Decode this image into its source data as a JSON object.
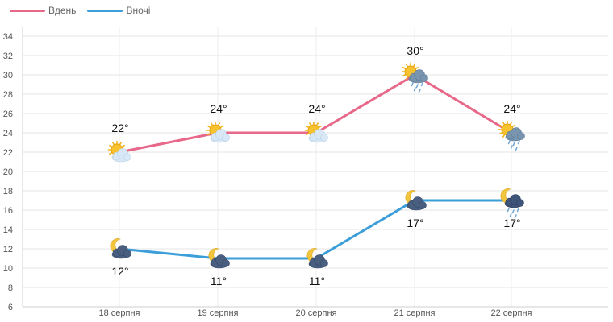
{
  "chart_data": {
    "type": "line",
    "categories": [
      "18 серпня",
      "19 серпня",
      "20 серпня",
      "21 серпня",
      "22 серпня"
    ],
    "series": [
      {
        "name": "Вдень",
        "color": "#e8688a",
        "values": [
          22,
          24,
          24,
          30,
          24
        ],
        "labels": [
          "22°",
          "24°",
          "24°",
          "30°",
          "24°"
        ],
        "icons": [
          "sun-behind-cloud-icon",
          "sun-behind-cloud-icon",
          "sun-behind-cloud-icon",
          "sun-rain-cloud-icon",
          "sun-rain-cloud-icon"
        ]
      },
      {
        "name": "Вночі",
        "color": "#3b9ed8",
        "values": [
          12,
          11,
          11,
          17,
          17
        ],
        "labels": [
          "12°",
          "11°",
          "11°",
          "17°",
          "17°"
        ],
        "icons": [
          "moon-cloud-icon",
          "moon-cloud-icon",
          "moon-cloud-icon",
          "moon-cloud-icon",
          "moon-rain-cloud-icon"
        ]
      }
    ],
    "yticks": [
      "6",
      "8",
      "10",
      "12",
      "14",
      "16",
      "18",
      "20",
      "22",
      "24",
      "26",
      "28",
      "30",
      "32",
      "34"
    ],
    "ylim": [
      6,
      35
    ],
    "grid": true,
    "legend": "top-left"
  }
}
